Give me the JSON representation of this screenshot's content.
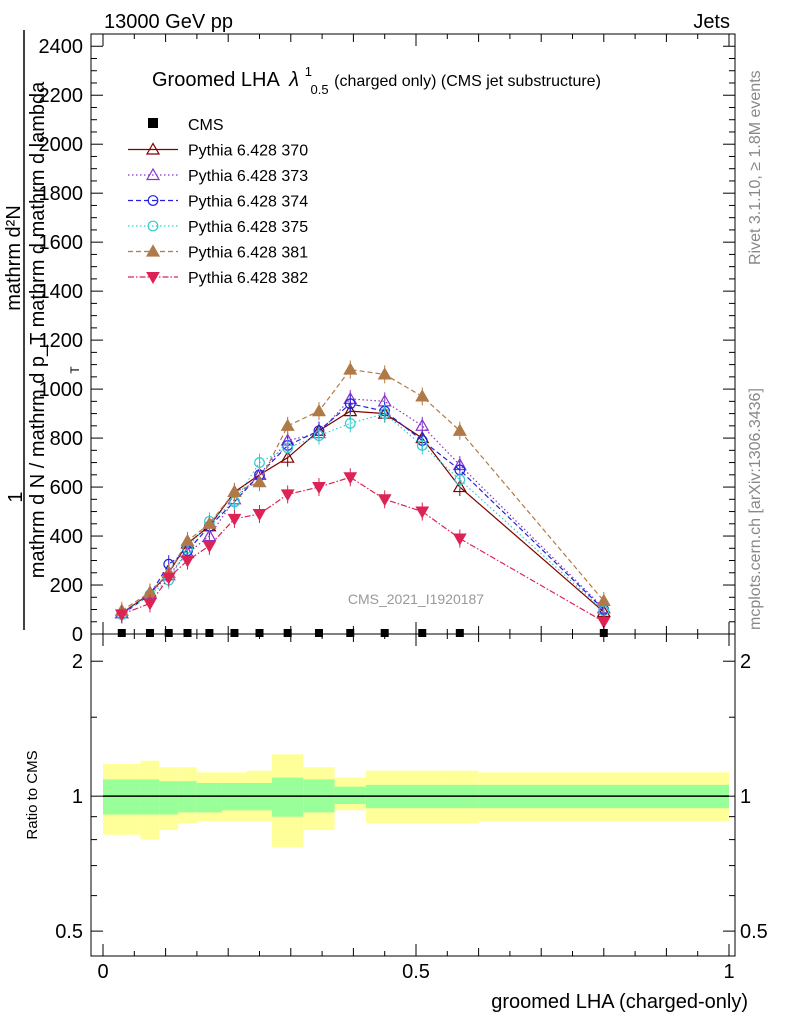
{
  "header": {
    "energy_label": "13000 GeV pp",
    "category_label": "Jets",
    "side_label_top": "Rivet 3.1.10, ≥ 1.8M events",
    "side_label_bottom": "mcplots.cern.ch [arXiv:1306.3436]",
    "watermark": "CMS_2021_I1920187"
  },
  "chart_data": [
    {
      "type": "line",
      "title_main": "Groomed LHA",
      "title_lambda": "λ",
      "title_sup": "1",
      "title_sub": "0.5",
      "title_tail": " (charged only) (CMS jet substructure)",
      "ylabel_top": "1",
      "ylabel_num": "mathrm d²N",
      "ylabel_den": "mathrm d N / mathrm d p_T mathrm d mathrm d lambda",
      "ylabel_T": "T",
      "xlabel": "groomed LHA (charged-only)",
      "xlim": [
        0,
        1
      ],
      "ylim": [
        0,
        2450
      ],
      "y_ticks": [
        0,
        200,
        400,
        600,
        800,
        1000,
        1200,
        1400,
        1600,
        1800,
        2000,
        2200,
        2400
      ],
      "y_tick_labels": [
        "0",
        "200",
        "400",
        "600",
        "800",
        "1000",
        "1200",
        "1400",
        "1600",
        "1800",
        "2000",
        "2200",
        "2400"
      ],
      "x_ticks": [
        0,
        0.5,
        1
      ],
      "x_tick_labels": [
        "0",
        "0.5",
        "1"
      ],
      "legend_position": "top-left",
      "data": {
        "name": "CMS",
        "x": [
          0.03,
          0.075,
          0.105,
          0.135,
          0.17,
          0.21,
          0.25,
          0.295,
          0.345,
          0.395,
          0.45,
          0.51,
          0.57,
          0.8
        ],
        "y": [
          0,
          0,
          0,
          0,
          0,
          0,
          0,
          0,
          0,
          0,
          0,
          0,
          0,
          0
        ]
      },
      "series": [
        {
          "name": "Pythia 6.428 370",
          "color": "#800000",
          "marker": "triangle-open",
          "dash": "",
          "x": [
            0.03,
            0.075,
            0.105,
            0.135,
            0.17,
            0.21,
            0.25,
            0.295,
            0.345,
            0.395,
            0.45,
            0.51,
            0.57,
            0.8
          ],
          "y": [
            85,
            165,
            250,
            370,
            440,
            580,
            650,
            720,
            830,
            910,
            900,
            800,
            600,
            90
          ]
        },
        {
          "name": "Pythia 6.428 373",
          "color": "#8833cc",
          "marker": "triangle-open",
          "dash": "1.5,2.5",
          "x": [
            0.03,
            0.075,
            0.105,
            0.135,
            0.17,
            0.21,
            0.25,
            0.295,
            0.345,
            0.395,
            0.45,
            0.51,
            0.57,
            0.8
          ],
          "y": [
            85,
            165,
            240,
            330,
            400,
            550,
            650,
            790,
            820,
            960,
            950,
            850,
            690,
            105
          ]
        },
        {
          "name": "Pythia 6.428 374",
          "color": "#2222dd",
          "marker": "circle-open",
          "dash": "5,3",
          "x": [
            0.03,
            0.075,
            0.105,
            0.135,
            0.17,
            0.21,
            0.25,
            0.295,
            0.345,
            0.395,
            0.45,
            0.51,
            0.57,
            0.8
          ],
          "y": [
            80,
            160,
            285,
            340,
            440,
            540,
            650,
            770,
            830,
            940,
            910,
            790,
            670,
            100
          ]
        },
        {
          "name": "Pythia 6.428 375",
          "color": "#33cccc",
          "marker": "circle-open",
          "dash": "1.5,2.5",
          "x": [
            0.03,
            0.075,
            0.105,
            0.135,
            0.17,
            0.21,
            0.25,
            0.295,
            0.345,
            0.395,
            0.45,
            0.51,
            0.57,
            0.8
          ],
          "y": [
            80,
            160,
            220,
            350,
            460,
            540,
            700,
            760,
            810,
            860,
            900,
            770,
            630,
            95
          ]
        },
        {
          "name": "Pythia 6.428 381",
          "color": "#b07a48",
          "marker": "triangle-filled",
          "dash": "5,3",
          "x": [
            0.03,
            0.075,
            0.105,
            0.135,
            0.17,
            0.21,
            0.25,
            0.295,
            0.345,
            0.395,
            0.45,
            0.51,
            0.57,
            0.8
          ],
          "y": [
            95,
            170,
            250,
            380,
            450,
            580,
            620,
            850,
            910,
            1080,
            1060,
            970,
            830,
            135
          ]
        },
        {
          "name": "Pythia 6.428 382",
          "color": "#dd2255",
          "marker": "triangle-down-filled",
          "dash": "6,2,1.5,2",
          "x": [
            0.03,
            0.075,
            0.105,
            0.135,
            0.17,
            0.21,
            0.25,
            0.295,
            0.345,
            0.395,
            0.45,
            0.51,
            0.57,
            0.8
          ],
          "y": [
            80,
            125,
            230,
            300,
            360,
            470,
            490,
            570,
            600,
            640,
            550,
            500,
            390,
            50
          ]
        }
      ]
    },
    {
      "type": "area",
      "ylabel": "Ratio to CMS",
      "ylim": [
        0.44,
        2.3
      ],
      "y_ticks": [
        0.5,
        1,
        2
      ],
      "y_tick_labels": [
        "0.5",
        "1",
        "2"
      ],
      "x_ticks": [
        0,
        0.5,
        1
      ],
      "x_tick_labels": [
        "0",
        "0.5",
        "1"
      ],
      "bin_edges": [
        0,
        0.06,
        0.09,
        0.12,
        0.15,
        0.19,
        0.23,
        0.27,
        0.32,
        0.37,
        0.42,
        0.48,
        0.54,
        0.6,
        1.0
      ],
      "band_inner_lo": [
        0.91,
        0.91,
        0.91,
        0.92,
        0.92,
        0.93,
        0.93,
        0.9,
        0.92,
        0.96,
        0.94,
        0.94,
        0.94,
        0.94
      ],
      "band_inner_hi": [
        1.09,
        1.09,
        1.08,
        1.08,
        1.07,
        1.07,
        1.07,
        1.1,
        1.09,
        1.05,
        1.06,
        1.06,
        1.06,
        1.06
      ],
      "band_outer_lo": [
        0.82,
        0.8,
        0.84,
        0.87,
        0.88,
        0.88,
        0.88,
        0.77,
        0.84,
        0.93,
        0.87,
        0.87,
        0.87,
        0.88
      ],
      "band_outer_hi": [
        1.18,
        1.2,
        1.16,
        1.16,
        1.13,
        1.13,
        1.14,
        1.24,
        1.16,
        1.1,
        1.14,
        1.14,
        1.14,
        1.13
      ],
      "inner_color": "#99ff99",
      "outer_color": "#ffff99"
    }
  ]
}
